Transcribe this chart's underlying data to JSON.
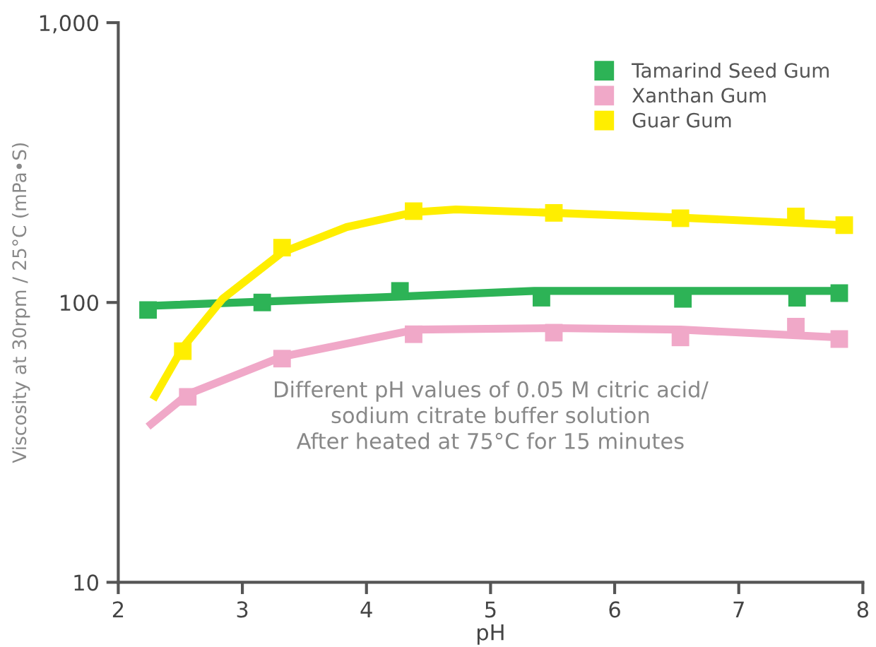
{
  "chart_data": {
    "type": "line",
    "xlabel": "pH",
    "ylabel": "Viscosity at 30rpm / 25°C (mPa•S)",
    "log": "y",
    "xlim": [
      2,
      8
    ],
    "ylim": [
      10,
      1000
    ],
    "xticks": [
      2,
      3,
      4,
      5,
      6,
      7,
      8
    ],
    "yticks": [
      10,
      100,
      {
        "value": 1000,
        "label": "1,000"
      }
    ],
    "grid": false,
    "legend": "top right",
    "annotations": [
      "Different pH values of 0.05 M citric acid/\nsodium citrate buffer solution\nAfter heated at 75°C for 15 minutes"
    ],
    "series": [
      {
        "name": "Tamarind Seed Gum",
        "type": "scatter",
        "marker": "square",
        "color": "#2db356",
        "x": [
          2.24,
          3.16,
          4.27,
          5.41,
          6.55,
          7.47,
          7.81
        ],
        "values": [
          94,
          100,
          110,
          104,
          103,
          104,
          108
        ]
      },
      {
        "name": "Xanthan Gum",
        "type": "scatter",
        "marker": "square",
        "color": "#f0a8c8",
        "x": [
          2.56,
          3.32,
          4.38,
          5.51,
          6.53,
          7.46,
          7.81
        ],
        "values": [
          46,
          63,
          77,
          78,
          75,
          82,
          74
        ]
      },
      {
        "name": "Guar Gum",
        "type": "scatter",
        "marker": "square",
        "color": "#ffee00",
        "x": [
          2.52,
          3.32,
          4.38,
          5.51,
          6.53,
          7.46,
          7.85
        ],
        "values": [
          67,
          157,
          212,
          209,
          200,
          203,
          189
        ]
      },
      {
        "marker": "none",
        "color": "#2db356",
        "x": [
          2.18,
          4.27,
          5.35,
          7.81
        ],
        "values": [
          97,
          105,
          110,
          110
        ]
      },
      {
        "marker": "none",
        "color": "#f0a8c8",
        "x": [
          2.24,
          2.56,
          3.32,
          4.4,
          5.51,
          6.53,
          7.81
        ],
        "values": [
          36,
          47,
          64,
          80,
          81,
          80,
          75
        ]
      },
      {
        "marker": "none",
        "color": "#ffee00",
        "x": [
          2.28,
          2.52,
          2.84,
          3.32,
          3.84,
          4.38,
          4.72,
          5.51,
          6.53,
          7.85
        ],
        "values": [
          45,
          69,
          103,
          151,
          186,
          210,
          215,
          209,
          201,
          189
        ]
      }
    ]
  }
}
